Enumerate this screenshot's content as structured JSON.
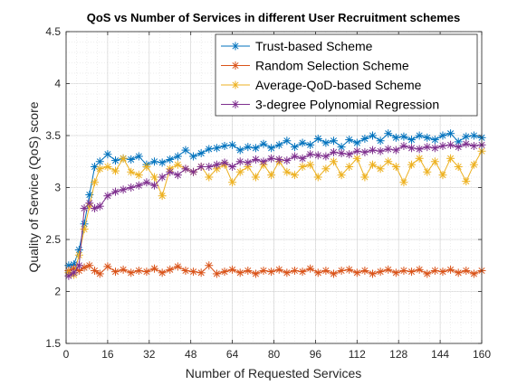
{
  "chart_data": {
    "type": "line",
    "title": "QoS vs Number of Services in different User Recruitment schemes",
    "xlabel": "Number of Requested Services",
    "ylabel": "Quality of Service (QoS) score",
    "xlim": [
      0,
      160
    ],
    "ylim": [
      1.5,
      4.5
    ],
    "xticks": [
      0,
      16,
      32,
      48,
      64,
      80,
      96,
      112,
      128,
      144,
      160
    ],
    "yticks": [
      1.5,
      2,
      2.5,
      3,
      3.5,
      4,
      4.5
    ],
    "grid": true,
    "minor_grid": true,
    "legend_position": "top-right",
    "series": [
      {
        "name": "Trust-based Scheme",
        "color": "#0072BD",
        "marker": "asterisk",
        "x": [
          1,
          3,
          5,
          7,
          9,
          11,
          13,
          16,
          19,
          22,
          25,
          28,
          31,
          34,
          37,
          40,
          43,
          46,
          49,
          52,
          55,
          58,
          61,
          64,
          67,
          70,
          73,
          76,
          79,
          82,
          85,
          88,
          91,
          94,
          97,
          100,
          103,
          106,
          109,
          112,
          115,
          118,
          121,
          124,
          127,
          130,
          133,
          136,
          139,
          142,
          145,
          148,
          151,
          154,
          157,
          160
        ],
        "y": [
          2.25,
          2.26,
          2.4,
          2.65,
          2.93,
          3.2,
          3.25,
          3.32,
          3.26,
          3.28,
          3.27,
          3.3,
          3.22,
          3.25,
          3.24,
          3.27,
          3.3,
          3.36,
          3.3,
          3.33,
          3.37,
          3.38,
          3.4,
          3.41,
          3.36,
          3.39,
          3.38,
          3.42,
          3.38,
          3.41,
          3.45,
          3.39,
          3.43,
          3.41,
          3.47,
          3.43,
          3.45,
          3.39,
          3.46,
          3.43,
          3.47,
          3.5,
          3.45,
          3.52,
          3.48,
          3.49,
          3.46,
          3.5,
          3.48,
          3.46,
          3.5,
          3.52,
          3.44,
          3.49,
          3.5,
          3.48
        ]
      },
      {
        "name": "Random Selection Scheme",
        "color": "#D95319",
        "marker": "asterisk",
        "x": [
          1,
          3,
          5,
          7,
          9,
          11,
          13,
          16,
          19,
          22,
          25,
          28,
          31,
          34,
          37,
          40,
          43,
          46,
          49,
          52,
          55,
          58,
          61,
          64,
          67,
          70,
          73,
          76,
          79,
          82,
          85,
          88,
          91,
          94,
          97,
          100,
          103,
          106,
          109,
          112,
          115,
          118,
          121,
          124,
          127,
          130,
          133,
          136,
          139,
          142,
          145,
          148,
          151,
          154,
          157,
          160
        ],
        "y": [
          2.2,
          2.22,
          2.2,
          2.23,
          2.25,
          2.2,
          2.17,
          2.24,
          2.19,
          2.21,
          2.18,
          2.2,
          2.19,
          2.22,
          2.18,
          2.21,
          2.24,
          2.2,
          2.19,
          2.18,
          2.25,
          2.17,
          2.19,
          2.21,
          2.18,
          2.2,
          2.17,
          2.2,
          2.19,
          2.21,
          2.18,
          2.2,
          2.19,
          2.22,
          2.18,
          2.2,
          2.17,
          2.2,
          2.21,
          2.18,
          2.2,
          2.17,
          2.19,
          2.21,
          2.18,
          2.2,
          2.19,
          2.21,
          2.17,
          2.2,
          2.19,
          2.21,
          2.18,
          2.2,
          2.17,
          2.2
        ]
      },
      {
        "name": "Average-QoD-based Scheme",
        "color": "#EDB120",
        "marker": "asterisk",
        "x": [
          1,
          3,
          5,
          7,
          9,
          11,
          13,
          16,
          19,
          22,
          25,
          28,
          31,
          34,
          37,
          40,
          43,
          46,
          49,
          52,
          55,
          58,
          61,
          64,
          67,
          70,
          73,
          76,
          79,
          82,
          85,
          88,
          91,
          94,
          97,
          100,
          103,
          106,
          109,
          112,
          115,
          118,
          121,
          124,
          127,
          130,
          133,
          136,
          139,
          142,
          145,
          148,
          151,
          154,
          157,
          160
        ],
        "y": [
          2.18,
          2.16,
          2.35,
          2.6,
          2.82,
          3.05,
          3.18,
          3.2,
          3.16,
          3.28,
          3.15,
          3.12,
          3.2,
          3.1,
          2.92,
          3.18,
          3.22,
          3.18,
          3.15,
          3.2,
          3.1,
          3.18,
          3.22,
          3.05,
          3.15,
          3.2,
          3.1,
          3.22,
          3.12,
          3.25,
          3.15,
          3.12,
          3.2,
          3.22,
          3.1,
          3.18,
          3.25,
          3.12,
          3.2,
          3.28,
          3.1,
          3.22,
          3.18,
          3.25,
          3.2,
          3.05,
          3.22,
          3.28,
          3.15,
          3.25,
          3.12,
          3.28,
          3.2,
          3.06,
          3.22,
          3.35
        ]
      },
      {
        "name": "3-degree Polynomial Regression",
        "color": "#7E2F8E",
        "marker": "asterisk",
        "x": [
          1,
          3,
          5,
          7,
          9,
          11,
          13,
          16,
          19,
          22,
          25,
          28,
          31,
          34,
          37,
          40,
          43,
          46,
          49,
          52,
          55,
          58,
          61,
          64,
          67,
          70,
          73,
          76,
          79,
          82,
          85,
          88,
          91,
          94,
          97,
          100,
          103,
          106,
          109,
          112,
          115,
          118,
          121,
          124,
          127,
          130,
          133,
          136,
          139,
          142,
          145,
          148,
          151,
          154,
          157,
          160
        ],
        "y": [
          2.15,
          2.18,
          2.25,
          2.8,
          2.85,
          2.8,
          2.82,
          2.92,
          2.96,
          2.98,
          3.0,
          3.02,
          3.05,
          3.02,
          3.1,
          3.15,
          3.12,
          3.18,
          3.15,
          3.2,
          3.2,
          3.22,
          3.24,
          3.2,
          3.25,
          3.24,
          3.27,
          3.25,
          3.28,
          3.27,
          3.26,
          3.3,
          3.28,
          3.32,
          3.31,
          3.3,
          3.34,
          3.33,
          3.32,
          3.35,
          3.34,
          3.36,
          3.35,
          3.37,
          3.36,
          3.4,
          3.38,
          3.37,
          3.39,
          3.38,
          3.4,
          3.41,
          3.39,
          3.42,
          3.4,
          3.41
        ]
      }
    ]
  }
}
